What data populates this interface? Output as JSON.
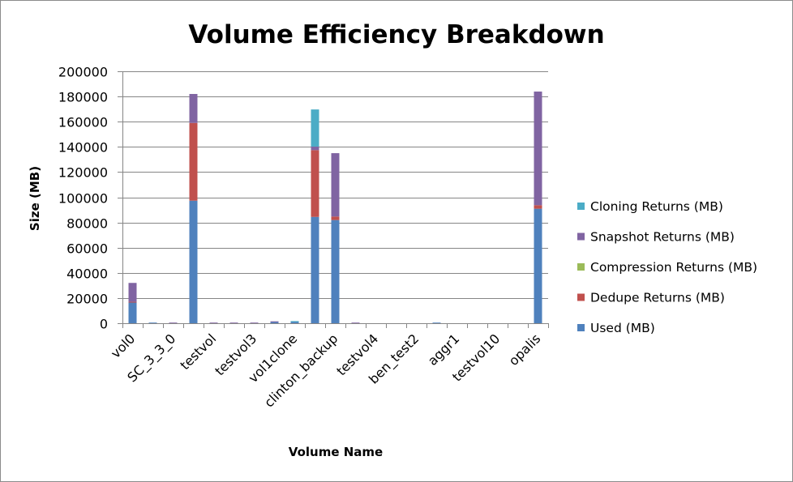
{
  "chart_data": {
    "type": "bar",
    "stacked": true,
    "title": "Volume Efficiency Breakdown",
    "xlabel": "Volume Name",
    "ylabel": "Size (MB)",
    "ylim": [
      0,
      200000
    ],
    "yticks": [
      0,
      20000,
      40000,
      60000,
      80000,
      100000,
      120000,
      140000,
      160000,
      180000,
      200000
    ],
    "grid": true,
    "legend_position": "right",
    "categories": [
      "vol0",
      "",
      "SC_3_3_0",
      "",
      "testvol",
      "",
      "testvol3",
      "",
      "vol1clone",
      "",
      "clinton_backup",
      "",
      "testvol4",
      "",
      "ben_test2",
      "",
      "aggr1",
      "",
      "testvol10",
      "",
      "opalis"
    ],
    "series": [
      {
        "name": "Used (MB)",
        "color": "#4f81bd",
        "values": [
          16500,
          500,
          0,
          97300,
          0,
          0,
          0,
          1000,
          1200,
          84400,
          81900,
          0,
          0,
          0,
          0,
          500,
          0,
          0,
          0,
          0,
          90900
        ]
      },
      {
        "name": "Dedupe Returns (MB)",
        "color": "#c0504d",
        "values": [
          500,
          0,
          0,
          61700,
          0,
          0,
          0,
          0,
          0,
          53000,
          2800,
          0,
          0,
          0,
          0,
          0,
          0,
          0,
          0,
          0,
          2800
        ]
      },
      {
        "name": "Compression Returns (MB)",
        "color": "#9bbb59",
        "values": [
          0,
          0,
          0,
          0,
          0,
          0,
          0,
          0,
          0,
          0,
          0,
          0,
          0,
          0,
          0,
          0,
          0,
          0,
          0,
          0,
          0
        ]
      },
      {
        "name": "Snapshot Returns (MB)",
        "color": "#8064a2",
        "values": [
          15000,
          0,
          500,
          23000,
          500,
          500,
          500,
          500,
          0,
          2800,
          50300,
          500,
          0,
          0,
          0,
          0,
          0,
          0,
          0,
          0,
          90200
        ]
      },
      {
        "name": "Cloning Returns (MB)",
        "color": "#4bacc6",
        "values": [
          0,
          0,
          0,
          0,
          0,
          0,
          0,
          0,
          500,
          29500,
          0,
          0,
          0,
          0,
          0,
          0,
          0,
          0,
          0,
          0,
          0
        ]
      }
    ]
  }
}
